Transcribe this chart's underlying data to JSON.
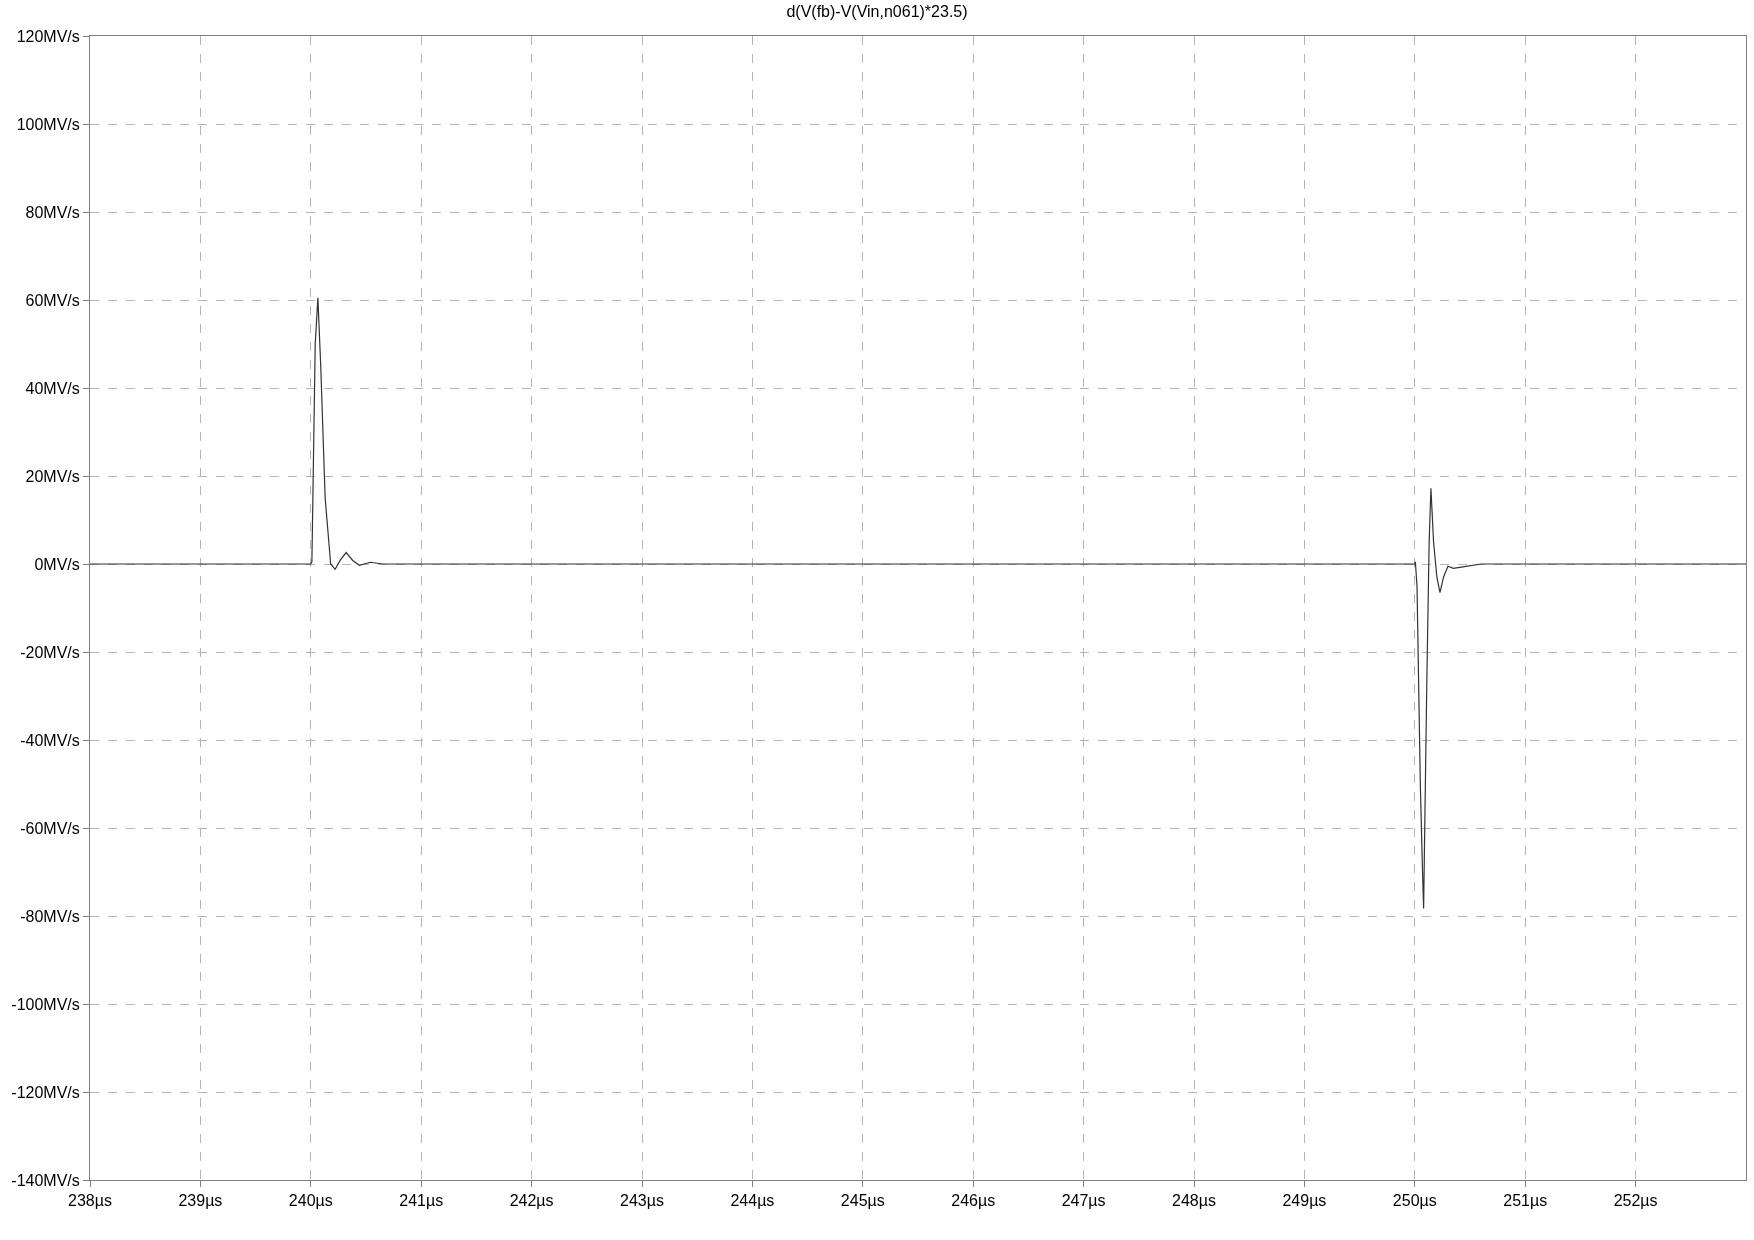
{
  "chart_data": {
    "type": "line",
    "title": "d(V(fb)-V(Vin,n061)*23.5)",
    "x": [
      238,
      240.0,
      240.01,
      240.04,
      240.064,
      240.09,
      240.13,
      240.18,
      240.22,
      240.27,
      240.32,
      240.38,
      240.44,
      240.54,
      240.65,
      250.0,
      250.005,
      250.02,
      250.05,
      250.07,
      250.08,
      250.09,
      250.11,
      250.13,
      250.146,
      250.17,
      250.2,
      250.228,
      250.26,
      250.3,
      250.35,
      250.45,
      250.6,
      253
    ],
    "series": [
      {
        "color": "#333333",
        "values": [
          0,
          0,
          0.5,
          50,
          60.5,
          45,
          15,
          0,
          -1.2,
          1,
          2.6,
          0.8,
          -0.3,
          0.4,
          0,
          0,
          0.5,
          -5,
          -50,
          -70,
          -78.3,
          -60,
          -25,
          5,
          17.2,
          5,
          -3,
          -6.5,
          -3,
          -0.5,
          -1,
          -0.6,
          0,
          0
        ]
      }
    ],
    "xlim": [
      238,
      253
    ],
    "xticks": [
      {
        "value": 238,
        "label": "238µs"
      },
      {
        "value": 239,
        "label": "239µs"
      },
      {
        "value": 240,
        "label": "240µs"
      },
      {
        "value": 241,
        "label": "241µs"
      },
      {
        "value": 242,
        "label": "242µs"
      },
      {
        "value": 243,
        "label": "243µs"
      },
      {
        "value": 244,
        "label": "244µs"
      },
      {
        "value": 245,
        "label": "245µs"
      },
      {
        "value": 246,
        "label": "246µs"
      },
      {
        "value": 247,
        "label": "247µs"
      },
      {
        "value": 248,
        "label": "248µs"
      },
      {
        "value": 249,
        "label": "249µs"
      },
      {
        "value": 250,
        "label": "250µs"
      },
      {
        "value": 251,
        "label": "251µs"
      },
      {
        "value": 252,
        "label": "252µs"
      }
    ],
    "ylim": [
      -140,
      120
    ],
    "yticks": [
      {
        "value": -140,
        "label": "-140MV/s"
      },
      {
        "value": -120,
        "label": "-120MV/s"
      },
      {
        "value": -100,
        "label": "-100MV/s"
      },
      {
        "value": -80,
        "label": "-80MV/s"
      },
      {
        "value": -60,
        "label": "-60MV/s"
      },
      {
        "value": -40,
        "label": "-40MV/s"
      },
      {
        "value": -20,
        "label": "-20MV/s"
      },
      {
        "value": 0,
        "label": "0MV/s"
      },
      {
        "value": 20,
        "label": "20MV/s"
      },
      {
        "value": 40,
        "label": "40MV/s"
      },
      {
        "value": 60,
        "label": "60MV/s"
      },
      {
        "value": 80,
        "label": "80MV/s"
      },
      {
        "value": 100,
        "label": "100MV/s"
      },
      {
        "value": 120,
        "label": "120MV/s"
      }
    ],
    "grid": true,
    "marker": "none",
    "line_style": "solid"
  }
}
